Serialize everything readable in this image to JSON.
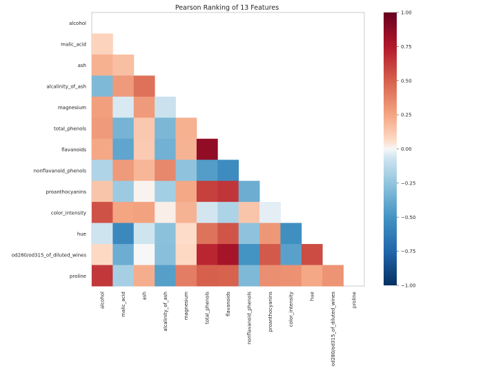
{
  "chart_data": {
    "type": "heatmap",
    "title": "Pearson Ranking of 13 Features",
    "features": [
      "alcohol",
      "malic_acid",
      "ash",
      "alcalinity_of_ash",
      "magnesium",
      "total_phenols",
      "flavanoids",
      "nonflavanoid_phenols",
      "proanthocyanins",
      "color_intensity",
      "hue",
      "od280/od315_of_diluted_wines",
      "proline"
    ],
    "lower_triangle_values": [
      [],
      [
        0.09
      ],
      [
        0.21,
        0.16
      ],
      [
        -0.31,
        0.29,
        0.44
      ],
      [
        0.27,
        -0.05,
        0.29,
        -0.08
      ],
      [
        0.29,
        -0.34,
        0.13,
        -0.32,
        0.21
      ],
      [
        0.24,
        -0.41,
        0.12,
        -0.35,
        0.2,
        0.86
      ],
      [
        -0.16,
        0.29,
        0.19,
        0.36,
        -0.26,
        -0.45,
        -0.54
      ],
      [
        0.14,
        -0.22,
        0.01,
        -0.2,
        0.24,
        0.61,
        0.65,
        -0.37
      ],
      [
        0.55,
        0.25,
        0.26,
        0.02,
        0.2,
        -0.06,
        -0.17,
        0.14,
        -0.03
      ],
      [
        -0.07,
        -0.56,
        -0.07,
        -0.27,
        0.06,
        0.43,
        0.54,
        -0.26,
        0.3,
        -0.52
      ],
      [
        0.07,
        -0.37,
        0.0,
        -0.28,
        0.07,
        0.7,
        0.79,
        -0.5,
        0.52,
        -0.43,
        0.57
      ],
      [
        0.64,
        -0.19,
        0.22,
        -0.44,
        0.39,
        0.5,
        0.49,
        -0.31,
        0.33,
        0.32,
        0.24,
        0.31
      ]
    ],
    "colorbar": {
      "range": [
        -1.0,
        1.0
      ],
      "tick_labels": [
        "1.00",
        "0.75",
        "0.50",
        "0.25",
        "0.00",
        "−0.25",
        "−0.50",
        "−0.75",
        "−1.00"
      ],
      "colormap": "RdBu_r"
    },
    "grid": false,
    "legend": "right"
  }
}
